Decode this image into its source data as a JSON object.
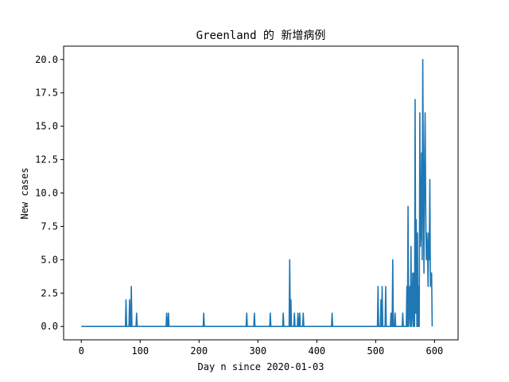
{
  "chart_data": {
    "type": "line",
    "title": "Greenland 的 新增病例",
    "xlabel": "Day n since 2020-01-03",
    "ylabel": "New cases",
    "xlim": [
      -30,
      640
    ],
    "ylim": [
      -1.0,
      21.0
    ],
    "x_ticks": [
      0,
      100,
      200,
      300,
      400,
      500,
      600
    ],
    "y_ticks": [
      0.0,
      2.5,
      5.0,
      7.5,
      10.0,
      12.5,
      15.0,
      17.5,
      20.0
    ],
    "x_tick_labels": [
      "0",
      "100",
      "200",
      "300",
      "400",
      "500",
      "600"
    ],
    "y_tick_labels": [
      "0.0",
      "2.5",
      "5.0",
      "7.5",
      "10.0",
      "12.5",
      "15.0",
      "17.5",
      "20.0"
    ],
    "grid": false,
    "legend": "none",
    "series": [
      {
        "color": "#1f77b4",
        "points": [
          [
            0,
            0
          ],
          [
            75,
            0
          ],
          [
            76,
            2
          ],
          [
            77,
            0
          ],
          [
            81,
            0
          ],
          [
            82,
            2
          ],
          [
            83,
            0
          ],
          [
            84,
            0
          ],
          [
            85,
            3
          ],
          [
            86,
            0
          ],
          [
            93,
            0
          ],
          [
            94,
            1
          ],
          [
            95,
            0
          ],
          [
            144,
            0
          ],
          [
            145,
            1
          ],
          [
            146,
            0
          ],
          [
            147,
            0
          ],
          [
            148,
            1
          ],
          [
            149,
            0
          ],
          [
            207,
            0
          ],
          [
            208,
            1
          ],
          [
            209,
            0
          ],
          [
            280,
            0
          ],
          [
            281,
            1
          ],
          [
            282,
            0
          ],
          [
            293,
            0
          ],
          [
            294,
            1
          ],
          [
            295,
            0
          ],
          [
            320,
            0
          ],
          [
            321,
            1
          ],
          [
            322,
            0
          ],
          [
            342,
            0
          ],
          [
            343,
            1
          ],
          [
            344,
            0
          ],
          [
            353,
            0
          ],
          [
            354,
            5
          ],
          [
            355,
            0
          ],
          [
            356,
            2
          ],
          [
            357,
            0
          ],
          [
            361,
            0
          ],
          [
            362,
            1
          ],
          [
            363,
            0
          ],
          [
            367,
            0
          ],
          [
            368,
            1
          ],
          [
            369,
            0
          ],
          [
            370,
            0
          ],
          [
            371,
            1
          ],
          [
            372,
            0
          ],
          [
            376,
            0
          ],
          [
            377,
            1
          ],
          [
            378,
            0
          ],
          [
            425,
            0
          ],
          [
            426,
            1
          ],
          [
            427,
            0
          ],
          [
            503,
            0
          ],
          [
            504,
            3
          ],
          [
            505,
            0
          ],
          [
            508,
            0
          ],
          [
            509,
            2
          ],
          [
            510,
            0
          ],
          [
            511,
            3
          ],
          [
            512,
            0
          ],
          [
            516,
            0
          ],
          [
            517,
            3
          ],
          [
            518,
            0
          ],
          [
            525,
            0
          ],
          [
            526,
            1
          ],
          [
            527,
            0
          ],
          [
            528,
            0
          ],
          [
            529,
            5
          ],
          [
            530,
            0
          ],
          [
            532,
            0
          ],
          [
            533,
            1
          ],
          [
            534,
            0
          ],
          [
            545,
            0
          ],
          [
            546,
            1
          ],
          [
            547,
            0
          ],
          [
            552,
            0
          ],
          [
            553,
            3
          ],
          [
            554,
            0
          ],
          [
            555,
            9
          ],
          [
            556,
            0
          ],
          [
            557,
            1
          ],
          [
            558,
            3
          ],
          [
            559,
            0
          ],
          [
            560,
            6
          ],
          [
            561,
            0
          ],
          [
            562,
            1
          ],
          [
            563,
            4
          ],
          [
            564,
            0
          ],
          [
            565,
            4
          ],
          [
            566,
            0
          ],
          [
            567,
            17
          ],
          [
            568,
            1
          ],
          [
            569,
            8
          ],
          [
            570,
            0
          ],
          [
            571,
            7
          ],
          [
            572,
            0
          ],
          [
            573,
            3
          ],
          [
            574,
            0
          ],
          [
            575,
            16
          ],
          [
            576,
            6
          ],
          [
            577,
            7
          ],
          [
            578,
            13
          ],
          [
            579,
            5
          ],
          [
            580,
            20
          ],
          [
            581,
            11
          ],
          [
            582,
            4
          ],
          [
            583,
            12
          ],
          [
            584,
            16
          ],
          [
            585,
            9
          ],
          [
            586,
            5
          ],
          [
            587,
            7
          ],
          [
            588,
            6
          ],
          [
            589,
            3
          ],
          [
            590,
            7
          ],
          [
            591,
            5
          ],
          [
            592,
            11
          ],
          [
            593,
            3
          ],
          [
            594,
            4
          ],
          [
            595,
            4
          ],
          [
            596,
            0
          ]
        ]
      }
    ]
  }
}
